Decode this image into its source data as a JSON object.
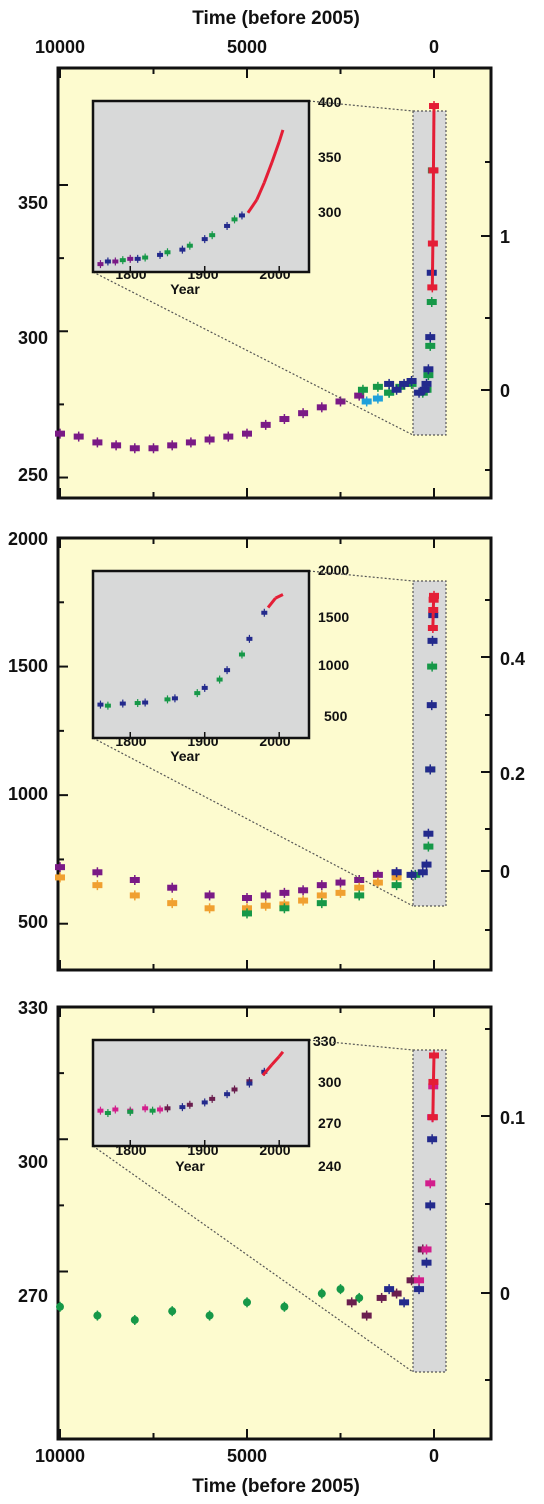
{
  "colors": {
    "panel_bg": "#fdfbcf",
    "inset_bg": "#d8d9d9",
    "purple": "#7a1a86",
    "green": "#169848",
    "navy": "#232a8c",
    "red": "#e41e36",
    "orange": "#f0a030",
    "cyan": "#1fa0da",
    "maroon": "#6a1e4e",
    "magenta": "#d21e8c",
    "pink": "#ec4a8c"
  },
  "top_axis": {
    "title": "Time (before 2005)",
    "ticks": [
      "10000",
      "5000",
      "0"
    ]
  },
  "bottom_axis": {
    "title": "Time (before 2005)",
    "ticks": [
      "10000",
      "5000",
      "0"
    ]
  },
  "chart_data": [
    {
      "type": "scatter",
      "xlim": [
        10000,
        -600
      ],
      "ylim": [
        243,
        390
      ],
      "y_ticks": [
        "250",
        "300",
        "350"
      ],
      "right_ticks": [
        "0",
        "1"
      ],
      "inset": {
        "xlabel": "Year",
        "x_ticks": [
          "1800",
          "1900",
          "2000"
        ],
        "y_ticks": [
          "300",
          "350",
          "400"
        ],
        "xlim": [
          1750,
          2040
        ],
        "ylim": [
          270,
          400
        ]
      },
      "series": [
        {
          "color_key": "purple",
          "x": [
            10000,
            9500,
            9000,
            8500,
            8000,
            7500,
            7000,
            6500,
            6000,
            5500,
            5000,
            4500,
            4000,
            3500,
            3000,
            2500,
            2000
          ],
          "y": [
            265,
            264,
            262,
            261,
            260,
            260,
            261,
            262,
            263,
            264,
            265,
            268,
            270,
            272,
            274,
            276,
            278
          ]
        },
        {
          "color_key": "cyan",
          "x": [
            1800,
            1500,
            1200
          ],
          "y": [
            276,
            277,
            279
          ]
        },
        {
          "color_key": "green",
          "x": [
            1900,
            1500,
            1200,
            900,
            600,
            300,
            200,
            150,
            100,
            60,
            30
          ],
          "y": [
            280,
            281,
            279,
            281,
            282,
            279,
            280,
            285,
            295,
            310,
            355
          ]
        },
        {
          "color_key": "navy",
          "x": [
            1200,
            1000,
            800,
            600,
            400,
            250,
            200,
            150,
            100,
            60
          ],
          "y": [
            282,
            280,
            282,
            283,
            279,
            280,
            282,
            287,
            298,
            320
          ]
        },
        {
          "color_key": "red",
          "x": [
            45,
            30,
            15,
            0
          ],
          "y": [
            315,
            330,
            355,
            377
          ]
        }
      ],
      "inset_series": [
        {
          "color_key": "purple",
          "x": [
            1760,
            1780,
            1800
          ],
          "y": [
            276,
            278,
            280
          ]
        },
        {
          "color_key": "green",
          "x": [
            1790,
            1820,
            1850,
            1880,
            1910,
            1940
          ],
          "y": [
            279,
            281,
            285,
            290,
            298,
            310
          ]
        },
        {
          "color_key": "navy",
          "x": [
            1770,
            1810,
            1840,
            1870,
            1900,
            1930,
            1950
          ],
          "y": [
            278,
            280,
            283,
            287,
            295,
            305,
            313
          ]
        },
        {
          "color_key": "red",
          "x": [
            1958,
            1970,
            1980,
            1990,
            2000,
            2005
          ],
          "y": [
            315,
            325,
            338,
            353,
            369,
            378
          ]
        }
      ]
    },
    {
      "type": "scatter",
      "xlim": [
        10000,
        -600
      ],
      "ylim": [
        320,
        2000
      ],
      "y_ticks": [
        "500",
        "1000",
        "1500",
        "2000"
      ],
      "right_ticks": [
        "0",
        "0.2",
        "0.4"
      ],
      "inset": {
        "xlabel": "Year",
        "x_ticks": [
          "1800",
          "1900",
          "2000"
        ],
        "y_ticks": [
          "500",
          "1000",
          "1500",
          "2000"
        ],
        "xlim": [
          1750,
          2040
        ],
        "ylim": [
          400,
          2000
        ]
      },
      "series": [
        {
          "color_key": "purple",
          "x": [
            10000,
            9000,
            8000,
            7000,
            6000,
            5000,
            4500,
            4000,
            3500,
            3000,
            2500,
            2000,
            1500,
            1000
          ],
          "y": [
            720,
            700,
            670,
            640,
            610,
            600,
            610,
            620,
            630,
            650,
            660,
            670,
            690,
            700
          ]
        },
        {
          "color_key": "orange",
          "x": [
            10000,
            9000,
            8000,
            7000,
            6000,
            5000,
            4500,
            4000,
            3500,
            3000,
            2500,
            2000,
            1500,
            1000
          ],
          "y": [
            680,
            650,
            610,
            580,
            560,
            560,
            570,
            575,
            590,
            610,
            620,
            640,
            660,
            680
          ]
        },
        {
          "color_key": "green",
          "x": [
            5000,
            4000,
            3000,
            2000,
            1000,
            500,
            150,
            100,
            50
          ],
          "y": [
            540,
            560,
            580,
            610,
            650,
            690,
            800,
            1100,
            1500
          ]
        },
        {
          "color_key": "navy",
          "x": [
            1000,
            600,
            300,
            200,
            150,
            100,
            60,
            40,
            20
          ],
          "y": [
            700,
            690,
            700,
            730,
            850,
            1100,
            1350,
            1600,
            1700
          ]
        },
        {
          "color_key": "red",
          "x": [
            30,
            20,
            10,
            0
          ],
          "y": [
            1650,
            1720,
            1760,
            1775
          ]
        }
      ],
      "inset_series": [
        {
          "color_key": "navy",
          "x": [
            1760,
            1790,
            1820,
            1860,
            1900,
            1930,
            1960,
            1980
          ],
          "y": [
            720,
            730,
            740,
            780,
            880,
            1050,
            1350,
            1600
          ]
        },
        {
          "color_key": "green",
          "x": [
            1770,
            1810,
            1850,
            1890,
            1920,
            1950
          ],
          "y": [
            710,
            735,
            770,
            830,
            960,
            1200
          ]
        },
        {
          "color_key": "red",
          "x": [
            1985,
            1995,
            2005
          ],
          "y": [
            1650,
            1740,
            1775
          ]
        }
      ]
    },
    {
      "type": "scatter",
      "xlim": [
        10000,
        -600
      ],
      "ylim": [
        232,
        330
      ],
      "y_ticks": [
        "270",
        "300",
        "330"
      ],
      "right_ticks": [
        "0",
        "0.1"
      ],
      "inset": {
        "xlabel": "Year",
        "x_ticks": [
          "1800",
          "1900",
          "2000"
        ],
        "y_ticks": [
          "240",
          "270",
          "300",
          "330"
        ],
        "xlim": [
          1750,
          2040
        ],
        "ylim": [
          240,
          330
        ]
      },
      "series": [
        {
          "color_key": "green",
          "x": [
            10000,
            9000,
            8000,
            7000,
            6000,
            5000,
            4000,
            3000,
            2500,
            2000
          ],
          "y": [
            262,
            260,
            259,
            261,
            260,
            263,
            262,
            265,
            266,
            264
          ]
        },
        {
          "color_key": "maroon",
          "x": [
            2200,
            1800,
            1400,
            1000,
            600,
            300
          ],
          "y": [
            263,
            260,
            264,
            265,
            268,
            275
          ]
        },
        {
          "color_key": "navy",
          "x": [
            1200,
            800,
            400,
            200,
            100,
            50
          ],
          "y": [
            266,
            263,
            266,
            272,
            285,
            300
          ]
        },
        {
          "color_key": "magenta",
          "x": [
            400,
            200,
            100,
            50,
            20
          ],
          "y": [
            268,
            275,
            290,
            305,
            312
          ]
        },
        {
          "color_key": "red",
          "x": [
            30,
            15,
            0
          ],
          "y": [
            305,
            313,
            319
          ]
        }
      ],
      "inset_series": [
        {
          "color_key": "magenta",
          "x": [
            1760,
            1780,
            1800,
            1820,
            1840
          ],
          "y": [
            270,
            271,
            270,
            272,
            271
          ]
        },
        {
          "color_key": "green",
          "x": [
            1770,
            1800,
            1830
          ],
          "y": [
            268,
            269,
            270
          ]
        },
        {
          "color_key": "maroon",
          "x": [
            1850,
            1880,
            1910,
            1940,
            1960
          ],
          "y": [
            272,
            275,
            280,
            288,
            295
          ]
        },
        {
          "color_key": "navy",
          "x": [
            1870,
            1900,
            1930,
            1960,
            1980
          ],
          "y": [
            273,
            277,
            284,
            293,
            303
          ]
        },
        {
          "color_key": "red",
          "x": [
            1978,
            1990,
            2000,
            2005
          ],
          "y": [
            300,
            309,
            316,
            320
          ]
        }
      ]
    }
  ]
}
